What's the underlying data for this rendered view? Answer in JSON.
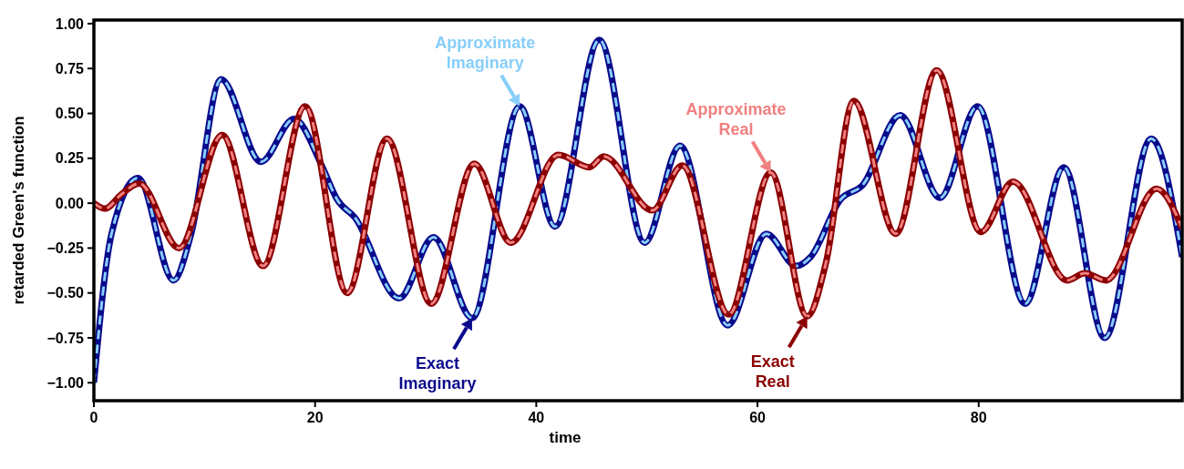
{
  "chart_data": {
    "type": "line",
    "xlabel": "time",
    "ylabel": "retarded Green's function",
    "xlim": [
      0,
      98.4
    ],
    "xticks": [
      0,
      20,
      40,
      60,
      80
    ],
    "ylim": [
      -1.1,
      1.02
    ],
    "yticks": [
      {
        "value": -1,
        "label": "−1.00"
      },
      {
        "value": -0.75,
        "label": "−0.75"
      },
      {
        "value": -0.5,
        "label": "−0.50"
      },
      {
        "value": -0.25,
        "label": "−0.25"
      },
      {
        "value": 0,
        "label": "0.00"
      },
      {
        "value": 0.25,
        "label": "0.25"
      },
      {
        "value": 0.5,
        "label": "0.50"
      },
      {
        "value": 0.75,
        "label": "0.75"
      },
      {
        "value": 1,
        "label": "1.00"
      }
    ],
    "grid": false,
    "marker": "none",
    "series": [
      {
        "color": "#0a0a8c",
        "line_style": "solid",
        "x": [
          0,
          1.6,
          4.0,
          7.2,
          8.8,
          11.5,
          15.1,
          18.1,
          20.6,
          22.0,
          23.6,
          27.6,
          30.7,
          34.2,
          38.5,
          41.7,
          45.7,
          49.8,
          53.0,
          57.3,
          60.8,
          63.5,
          64.8,
          67.5,
          69.5,
          72.9,
          76.5,
          79.9,
          84.2,
          87.7,
          91.4,
          95.6,
          98.4
        ],
        "values": [
          -1.0,
          -0.17,
          0.14,
          -0.43,
          -0.17,
          0.69,
          0.23,
          0.47,
          0.21,
          0.02,
          -0.08,
          -0.53,
          -0.19,
          -0.64,
          0.54,
          -0.13,
          0.91,
          -0.22,
          0.32,
          -0.68,
          -0.17,
          -0.35,
          -0.3,
          0.02,
          0.1,
          0.49,
          0.03,
          0.54,
          -0.56,
          0.2,
          -0.75,
          0.36,
          -0.3
        ]
      },
      {
        "color": "#87cefa",
        "line_style": "dashed",
        "x": [
          0,
          1.6,
          4.0,
          7.2,
          8.8,
          11.5,
          15.1,
          18.1,
          20.6,
          22.0,
          23.6,
          27.6,
          30.7,
          34.2,
          38.5,
          41.7,
          45.7,
          49.8,
          53.0,
          57.3,
          60.8,
          63.5,
          64.8,
          67.5,
          69.5,
          72.9,
          76.5,
          79.9,
          84.2,
          87.7,
          91.4,
          95.6,
          98.4
        ],
        "values": [
          -1.0,
          -0.17,
          0.14,
          -0.43,
          -0.17,
          0.69,
          0.23,
          0.47,
          0.21,
          0.02,
          -0.08,
          -0.53,
          -0.19,
          -0.64,
          0.54,
          -0.13,
          0.91,
          -0.22,
          0.32,
          -0.68,
          -0.17,
          -0.35,
          -0.3,
          0.02,
          0.1,
          0.49,
          0.03,
          0.54,
          -0.56,
          0.2,
          -0.75,
          0.36,
          -0.3
        ]
      },
      {
        "color": "#8b0000",
        "line_style": "solid",
        "x": [
          0,
          1.0,
          2.5,
          4.1,
          7.7,
          11.6,
          15.3,
          19.1,
          22.9,
          26.5,
          30.5,
          34.4,
          37.7,
          42.0,
          44.8,
          46.1,
          50.5,
          53.2,
          57.4,
          61.2,
          64.5,
          66.2,
          68.7,
          72.5,
          76.2,
          80.2,
          83.1,
          88.0,
          89.6,
          91.5,
          96.1,
          98.4
        ],
        "values": [
          0.0,
          -0.03,
          0.05,
          0.11,
          -0.25,
          0.38,
          -0.35,
          0.54,
          -0.5,
          0.36,
          -0.56,
          0.22,
          -0.22,
          0.27,
          0.2,
          0.26,
          -0.04,
          0.21,
          -0.62,
          0.17,
          -0.63,
          -0.33,
          0.57,
          -0.17,
          0.74,
          -0.16,
          0.12,
          -0.43,
          -0.39,
          -0.43,
          0.08,
          -0.14
        ]
      },
      {
        "color": "#f08080",
        "line_style": "dashed",
        "x": [
          0,
          1.0,
          2.5,
          4.1,
          7.7,
          11.6,
          15.3,
          19.1,
          22.9,
          26.5,
          30.5,
          34.4,
          37.7,
          42.0,
          44.8,
          46.1,
          50.5,
          53.2,
          57.4,
          61.2,
          64.5,
          66.2,
          68.7,
          72.5,
          76.2,
          80.2,
          83.1,
          88.0,
          89.6,
          91.5,
          96.1,
          98.4
        ],
        "values": [
          0.0,
          -0.03,
          0.05,
          0.11,
          -0.25,
          0.38,
          -0.35,
          0.54,
          -0.5,
          0.36,
          -0.56,
          0.22,
          -0.22,
          0.27,
          0.2,
          0.26,
          -0.04,
          0.21,
          -0.62,
          0.17,
          -0.63,
          -0.33,
          0.57,
          -0.17,
          0.74,
          -0.16,
          0.12,
          -0.43,
          -0.39,
          -0.43,
          0.08,
          -0.14
        ]
      }
    ],
    "annotations": [
      {
        "text": "Exact Imaginary",
        "x": 34.2,
        "y": -0.64
      },
      {
        "text": "Approximate Imaginary",
        "x": 38.5,
        "y": 0.54
      },
      {
        "text": "Exact Real",
        "x": 64.5,
        "y": -0.63
      },
      {
        "text": "Approximate Real",
        "x": 61.2,
        "y": 0.17
      }
    ]
  }
}
